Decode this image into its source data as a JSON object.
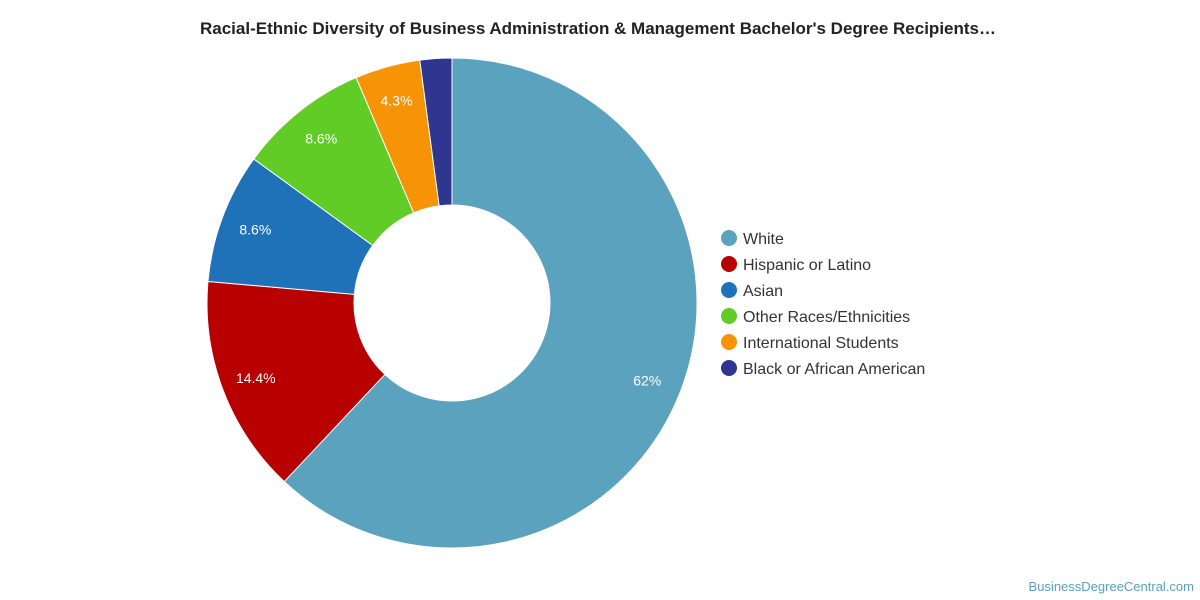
{
  "chart_data": {
    "type": "pie",
    "title": "Racial-Ethnic Diversity of Business Administration & Management Bachelor's Degree Recipients…",
    "slices": [
      {
        "name": "White",
        "value": 62,
        "label": "62%",
        "color": "#5ba2bf"
      },
      {
        "name": "Hispanic or Latino",
        "value": 14.4,
        "label": "14.4%",
        "color": "#b80000"
      },
      {
        "name": "Asian",
        "value": 8.6,
        "label": "8.6%",
        "color": "#1f72b8"
      },
      {
        "name": "Other Races/Ethnicities",
        "value": 8.6,
        "label": "8.6%",
        "color": "#62cc26"
      },
      {
        "name": "International Students",
        "value": 4.3,
        "label": "4.3%",
        "color": "#f79406"
      },
      {
        "name": "Black or African American",
        "value": 2.1,
        "label": "",
        "color": "#2e3690"
      }
    ],
    "legend_position": "right",
    "donut": true
  },
  "footer": {
    "source": "BusinessDegreeCentral.com"
  }
}
